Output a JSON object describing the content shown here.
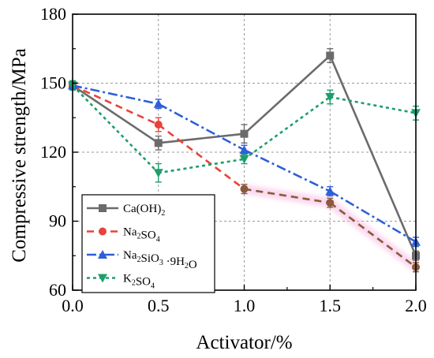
{
  "chart_data": {
    "type": "line",
    "xlabel": "Activator/%",
    "ylabel": "Compressive strength/MPa",
    "xlim": [
      0.0,
      2.0
    ],
    "ylim": [
      60,
      180
    ],
    "xticks": [
      "0.0",
      "0.5",
      "1.0",
      "1.5",
      "2.0"
    ],
    "yticks": [
      "60",
      "90",
      "120",
      "150",
      "180"
    ],
    "x": [
      0.0,
      0.5,
      1.0,
      1.5,
      2.0
    ],
    "grid": true,
    "legend_position": "bottom-left",
    "series": [
      {
        "key": "caoh2",
        "name": "Ca(OH)2",
        "legend": {
          "a": "Ca(OH)",
          "sub1": "2",
          "b": "",
          "sub2": "",
          "c": ""
        },
        "values": [
          149,
          124,
          128,
          162,
          75
        ],
        "errors": [
          2,
          3,
          4,
          3,
          2
        ],
        "color": "#6b6b6b",
        "marker": "square",
        "dash": "solid"
      },
      {
        "key": "na2so4",
        "name": "Na2SO4",
        "legend": {
          "a": "Na",
          "sub1": "2",
          "b": "SO",
          "sub2": "4",
          "c": ""
        },
        "values": [
          149,
          132,
          104,
          98,
          70
        ],
        "errors": [
          2,
          3,
          2,
          2,
          2
        ],
        "color": "#e8423b",
        "color_late": "#8b5a3c",
        "marker": "circle",
        "dash": "dash"
      },
      {
        "key": "na2sio3",
        "name": "Na2SiO3 ·9H2O",
        "legend": {
          "a": "Na",
          "sub1": "2",
          "b": "SiO",
          "sub2": "3",
          "c": " ·9H",
          "sub3": "2",
          "d": "O"
        },
        "values": [
          149,
          141,
          121,
          103,
          81
        ],
        "errors": [
          2,
          2,
          2,
          2,
          2
        ],
        "color": "#2e5fd9",
        "marker": "triangle",
        "dash": "dashdot"
      },
      {
        "key": "k2so4",
        "name": "K2SO4",
        "legend": {
          "a": "K",
          "sub1": "2",
          "b": "SO",
          "sub2": "4",
          "c": ""
        },
        "values": [
          149,
          111,
          117,
          144,
          137
        ],
        "errors": [
          2,
          4,
          2,
          3,
          3
        ],
        "color": "#1e9e6a",
        "marker": "triangle-down",
        "dash": "dot"
      }
    ]
  }
}
